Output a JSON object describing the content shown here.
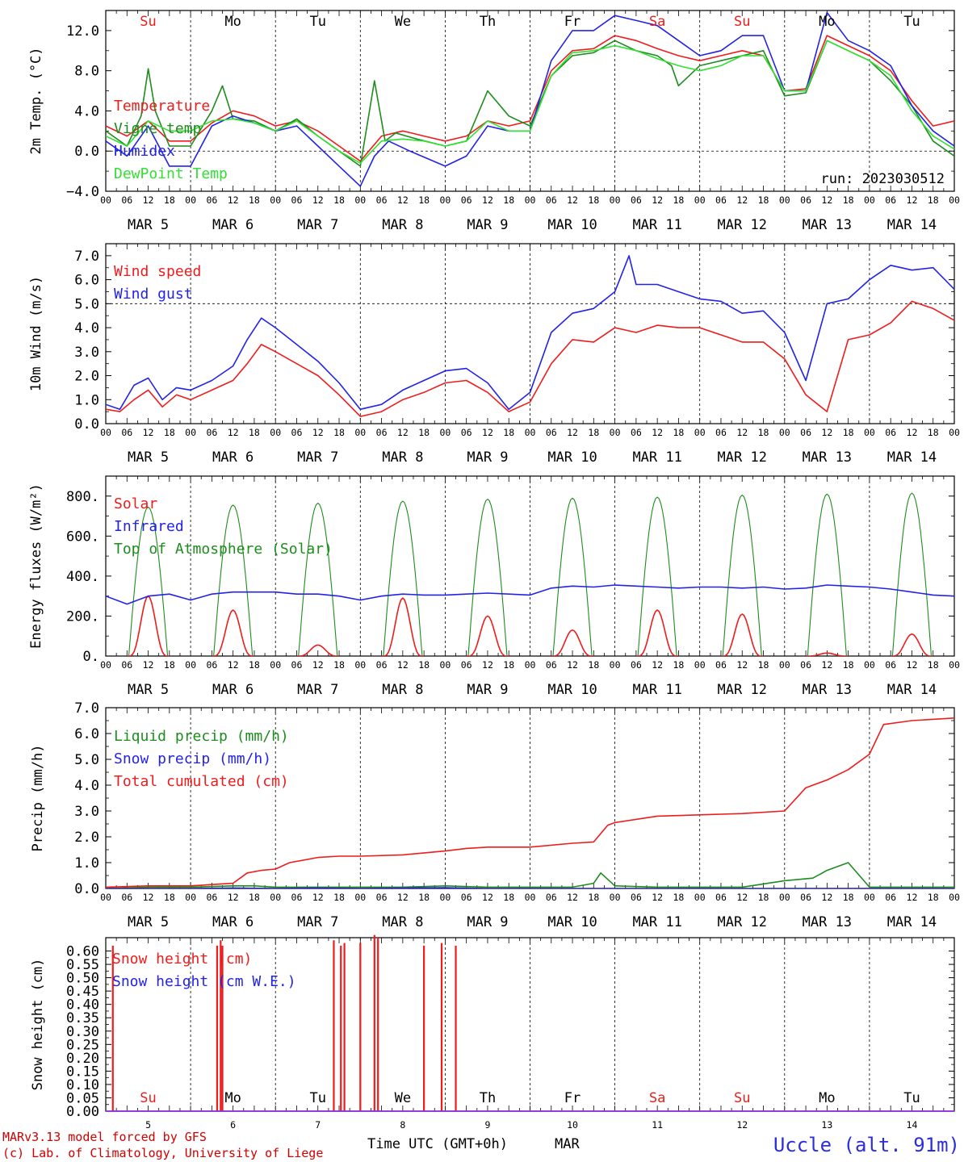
{
  "run_label": "run: 2023030512",
  "x_axis": {
    "hour_ticks": [
      "00",
      "06",
      "12",
      "18"
    ],
    "dates": [
      "MAR  5",
      "MAR  6",
      "MAR  7",
      "MAR  8",
      "MAR  9",
      "MAR 10",
      "MAR 11",
      "MAR 12",
      "MAR 13",
      "MAR 14"
    ],
    "day_numbers": [
      "5",
      "6",
      "7",
      "8",
      "9",
      "10",
      "11",
      "12",
      "13",
      "14"
    ],
    "xlabel": "Time UTC (GMT+0h)",
    "month": "MAR"
  },
  "weekdays": [
    {
      "label": "Su",
      "color": "#e8201c"
    },
    {
      "label": "Mo",
      "color": "#000000"
    },
    {
      "label": "Tu",
      "color": "#000000"
    },
    {
      "label": "We",
      "color": "#000000"
    },
    {
      "label": "Th",
      "color": "#000000"
    },
    {
      "label": "Fr",
      "color": "#000000"
    },
    {
      "label": "Sa",
      "color": "#e8201c"
    },
    {
      "label": "Su",
      "color": "#e8201c"
    },
    {
      "label": "Mo",
      "color": "#000000"
    },
    {
      "label": "Tu",
      "color": "#000000"
    }
  ],
  "footer": {
    "model": "MARv3.13 model forced by GFS",
    "credit": "(c) Lab. of Climatology, University of Liege",
    "station": "Uccle (alt. 91m)"
  },
  "colors": {
    "red": "#ee1c1c",
    "blue": "#2323e6",
    "dark_green": "#1e8c1e",
    "light_green": "#33e033"
  },
  "chart_data": [
    {
      "type": "line",
      "ylabel": "2m Temp. (°C)",
      "ylim": [
        -4,
        14
      ],
      "yticks": [
        -4,
        0,
        4,
        8,
        12
      ],
      "ytick_labels": [
        "−4.0",
        "0.0",
        "4.0",
        "8.0",
        "12.0"
      ],
      "reference_line": 0,
      "x_unit": "hours since MAR 5 00 UTC",
      "series": [
        {
          "name": "Temperature",
          "color": "#ee1c1c",
          "x": [
            0,
            6,
            12,
            18,
            24,
            30,
            36,
            42,
            48,
            54,
            60,
            66,
            72,
            78,
            84,
            90,
            96,
            102,
            108,
            114,
            120,
            126,
            132,
            138,
            144,
            150,
            156,
            162,
            168,
            174,
            180,
            186,
            192,
            198,
            204,
            210,
            216,
            222,
            228,
            234,
            240
          ],
          "y": [
            2.5,
            1.5,
            3.0,
            1.0,
            1.0,
            2.8,
            4.0,
            3.5,
            2.5,
            3.0,
            2.0,
            0.5,
            -1.0,
            1.5,
            2.0,
            1.5,
            1.0,
            1.5,
            3.0,
            2.5,
            3.0,
            8.0,
            10.0,
            10.2,
            11.5,
            11.0,
            10.2,
            9.5,
            9.0,
            9.5,
            10.0,
            9.5,
            6.0,
            6.2,
            11.5,
            10.5,
            9.5,
            8.0,
            5.0,
            2.5,
            3.0
          ]
        },
        {
          "name": "Vigne temp",
          "color": "#1e8c1e",
          "x": [
            0,
            6,
            10,
            12,
            14,
            18,
            24,
            30,
            33,
            36,
            42,
            48,
            54,
            60,
            66,
            72,
            76,
            79,
            82,
            88,
            96,
            102,
            108,
            114,
            120,
            126,
            132,
            138,
            144,
            150,
            156,
            160,
            162,
            168,
            174,
            180,
            186,
            192,
            198,
            204,
            210,
            216,
            222,
            228,
            234,
            240
          ],
          "y": [
            2.0,
            0.5,
            3.5,
            8.2,
            4.0,
            0.5,
            0.5,
            4.0,
            6.5,
            3.2,
            3.0,
            2.0,
            3.2,
            1.5,
            0.0,
            -1.5,
            7.0,
            1.0,
            1.8,
            1.2,
            0.5,
            1.0,
            6.0,
            3.5,
            2.5,
            7.5,
            9.5,
            9.8,
            11.0,
            10.0,
            9.5,
            8.5,
            6.5,
            8.5,
            9.0,
            9.5,
            10.0,
            5.5,
            5.8,
            11.0,
            10.0,
            9.0,
            7.0,
            4.5,
            1.0,
            -0.5
          ]
        },
        {
          "name": "Humidex",
          "color": "#2323e6",
          "x": [
            0,
            6,
            12,
            18,
            24,
            30,
            36,
            42,
            48,
            54,
            60,
            66,
            72,
            76,
            80,
            86,
            96,
            102,
            108,
            114,
            120,
            126,
            132,
            138,
            144,
            150,
            156,
            162,
            168,
            174,
            180,
            186,
            192,
            198,
            204,
            210,
            216,
            222,
            228,
            234,
            240
          ],
          "y": [
            1.0,
            -0.5,
            2.5,
            -1.5,
            -1.5,
            2.5,
            3.5,
            2.8,
            2.0,
            2.5,
            0.5,
            -1.5,
            -3.5,
            -0.5,
            1.0,
            0.0,
            -1.5,
            -0.5,
            2.5,
            2.0,
            2.0,
            9.0,
            12.0,
            12.0,
            13.5,
            13.0,
            12.5,
            11.0,
            9.5,
            10.0,
            11.5,
            11.5,
            6.0,
            6.0,
            13.8,
            11.0,
            10.0,
            8.5,
            4.5,
            2.0,
            0.5
          ]
        },
        {
          "name": "DewPoint Temp",
          "color": "#33e033",
          "x": [
            0,
            6,
            12,
            18,
            24,
            30,
            36,
            42,
            48,
            54,
            60,
            66,
            72,
            78,
            84,
            90,
            96,
            102,
            108,
            114,
            120,
            126,
            132,
            138,
            144,
            150,
            156,
            162,
            168,
            174,
            180,
            186,
            192,
            198,
            204,
            210,
            216,
            222,
            228,
            234,
            240
          ],
          "y": [
            1.5,
            0.5,
            3.0,
            2.0,
            2.0,
            3.0,
            3.2,
            2.8,
            2.0,
            3.0,
            1.5,
            0.0,
            -1.2,
            1.0,
            1.2,
            1.0,
            0.5,
            1.0,
            3.0,
            2.0,
            2.0,
            7.5,
            9.8,
            10.0,
            10.5,
            10.0,
            9.2,
            8.5,
            8.0,
            8.5,
            9.5,
            9.5,
            6.0,
            6.0,
            11.0,
            10.0,
            9.0,
            7.5,
            4.0,
            1.5,
            0.2
          ]
        }
      ]
    },
    {
      "type": "line",
      "ylabel": "10m Wind (m/s)",
      "ylim": [
        0,
        7.5
      ],
      "yticks": [
        0,
        1,
        2,
        3,
        4,
        5,
        6,
        7
      ],
      "ytick_labels": [
        "0.0",
        "1.0",
        "2.0",
        "3.0",
        "4.0",
        "5.0",
        "6.0",
        "7.0"
      ],
      "reference_line": 5,
      "x_unit": "hours since MAR 5 00 UTC",
      "series": [
        {
          "name": "Wind speed",
          "color": "#ee1c1c",
          "x": [
            0,
            4,
            8,
            12,
            16,
            20,
            24,
            30,
            36,
            40,
            44,
            48,
            54,
            60,
            66,
            72,
            78,
            84,
            90,
            96,
            102,
            108,
            114,
            120,
            126,
            132,
            138,
            144,
            150,
            156,
            162,
            168,
            174,
            180,
            186,
            192,
            198,
            204,
            210,
            216,
            222,
            228,
            234,
            240
          ],
          "y": [
            0.6,
            0.5,
            1.0,
            1.4,
            0.7,
            1.2,
            1.0,
            1.4,
            1.8,
            2.5,
            3.3,
            3.0,
            2.5,
            2.0,
            1.2,
            0.3,
            0.5,
            1.0,
            1.3,
            1.7,
            1.8,
            1.3,
            0.5,
            0.9,
            2.5,
            3.5,
            3.4,
            4.0,
            3.8,
            4.1,
            4.0,
            4.0,
            3.7,
            3.4,
            3.4,
            2.7,
            1.2,
            0.5,
            3.5,
            3.7,
            4.2,
            5.1,
            4.8,
            4.3
          ]
        },
        {
          "name": "Wind gust",
          "color": "#2323e6",
          "x": [
            0,
            4,
            8,
            12,
            16,
            20,
            24,
            30,
            36,
            40,
            44,
            48,
            54,
            60,
            66,
            72,
            78,
            84,
            90,
            96,
            102,
            108,
            114,
            120,
            126,
            132,
            138,
            144,
            148,
            150,
            156,
            162,
            168,
            174,
            180,
            186,
            192,
            198,
            204,
            210,
            216,
            222,
            228,
            234,
            240
          ],
          "y": [
            0.8,
            0.6,
            1.6,
            1.9,
            1.0,
            1.5,
            1.4,
            1.8,
            2.4,
            3.5,
            4.4,
            4.0,
            3.3,
            2.6,
            1.7,
            0.6,
            0.8,
            1.4,
            1.8,
            2.2,
            2.3,
            1.7,
            0.6,
            1.3,
            3.8,
            4.6,
            4.8,
            5.5,
            7.0,
            5.8,
            5.8,
            5.5,
            5.2,
            5.1,
            4.6,
            4.7,
            3.8,
            1.8,
            5.0,
            5.2,
            6.0,
            6.6,
            6.4,
            6.5,
            5.6
          ]
        }
      ]
    },
    {
      "type": "line",
      "ylabel": "Energy fluxes (W/m²)",
      "ylim": [
        0,
        900
      ],
      "yticks": [
        0,
        200,
        400,
        600,
        800
      ],
      "ytick_labels": [
        "0.",
        "200.",
        "400.",
        "600.",
        "800."
      ],
      "x_unit": "hours since MAR 5 00 UTC",
      "daily_peaks": {
        "top_of_atmosphere": [
          745,
          755,
          765,
          775,
          785,
          790,
          795,
          805,
          810,
          815
        ],
        "solar": [
          300,
          230,
          55,
          290,
          200,
          130,
          230,
          210,
          15,
          110
        ]
      },
      "series": [
        {
          "name": "Solar",
          "color": "#ee1c1c"
        },
        {
          "name": "Infrared",
          "color": "#2323e6",
          "x": [
            0,
            6,
            12,
            18,
            24,
            30,
            36,
            42,
            48,
            54,
            60,
            66,
            72,
            78,
            84,
            90,
            96,
            102,
            108,
            114,
            120,
            126,
            132,
            138,
            144,
            150,
            156,
            162,
            168,
            174,
            180,
            186,
            192,
            198,
            204,
            210,
            216,
            222,
            228,
            234,
            240
          ],
          "y": [
            300,
            260,
            300,
            310,
            280,
            310,
            320,
            320,
            320,
            310,
            310,
            300,
            280,
            300,
            310,
            305,
            305,
            310,
            315,
            310,
            305,
            340,
            350,
            345,
            355,
            350,
            345,
            340,
            345,
            345,
            340,
            345,
            335,
            340,
            355,
            350,
            345,
            335,
            320,
            305,
            300
          ]
        },
        {
          "name": "Top of Atmosphere (Solar)",
          "color": "#1e8c1e"
        }
      ]
    },
    {
      "type": "line",
      "ylabel": "Precip (mm/h)",
      "ylim": [
        0,
        7
      ],
      "yticks": [
        0,
        1,
        2,
        3,
        4,
        5,
        6,
        7
      ],
      "ytick_labels": [
        "0.0",
        "1.0",
        "2.0",
        "3.0",
        "4.0",
        "5.0",
        "6.0",
        "7.0"
      ],
      "x_unit": "hours since MAR 5 00 UTC",
      "series": [
        {
          "name": "Liquid precip (mm/h)",
          "color": "#1e8c1e",
          "x": [
            0,
            12,
            24,
            36,
            42,
            48,
            60,
            72,
            84,
            96,
            108,
            120,
            132,
            138,
            140,
            144,
            156,
            168,
            180,
            192,
            200,
            204,
            210,
            216,
            228,
            240
          ],
          "y": [
            0,
            0.05,
            0.05,
            0.1,
            0.1,
            0.05,
            0.05,
            0.05,
            0.05,
            0.1,
            0.05,
            0.05,
            0.05,
            0.2,
            0.6,
            0.1,
            0.05,
            0.05,
            0.05,
            0.3,
            0.4,
            0.7,
            1.0,
            0.05,
            0.05,
            0.05
          ]
        },
        {
          "name": "Snow precip (mm/h)",
          "color": "#2323e6",
          "x": [
            0,
            24,
            36,
            48,
            60,
            72,
            84,
            96,
            108,
            120,
            144,
            168,
            192,
            216,
            240
          ],
          "y": [
            0,
            0,
            0.02,
            0,
            0.02,
            0,
            0.02,
            0.03,
            0,
            0,
            0,
            0,
            0,
            0,
            0
          ]
        },
        {
          "name": "Total cumulated (cm)",
          "color": "#ee1c1c",
          "x": [
            0,
            12,
            24,
            30,
            36,
            40,
            44,
            48,
            52,
            60,
            66,
            72,
            84,
            96,
            102,
            108,
            120,
            132,
            138,
            142,
            144,
            156,
            168,
            180,
            192,
            198,
            204,
            210,
            216,
            220,
            228,
            240
          ],
          "y": [
            0.05,
            0.1,
            0.1,
            0.15,
            0.2,
            0.6,
            0.7,
            0.75,
            1.0,
            1.2,
            1.25,
            1.25,
            1.3,
            1.45,
            1.55,
            1.6,
            1.6,
            1.75,
            1.8,
            2.45,
            2.55,
            2.8,
            2.85,
            2.9,
            3.0,
            3.9,
            4.2,
            4.6,
            5.2,
            6.35,
            6.5,
            6.6
          ]
        }
      ]
    },
    {
      "type": "bar",
      "ylabel": "Snow height (cm)",
      "ylim": [
        0,
        0.65
      ],
      "yticks": [
        0,
        0.05,
        0.1,
        0.15,
        0.2,
        0.25,
        0.3,
        0.35,
        0.4,
        0.45,
        0.5,
        0.55,
        0.6
      ],
      "ytick_labels": [
        "0.00",
        "0.05",
        "0.10",
        "0.15",
        "0.20",
        "0.25",
        "0.30",
        "0.35",
        "0.40",
        "0.45",
        "0.50",
        "0.55",
        "0.60"
      ],
      "x_unit": "hours since MAR 5 00 UTC",
      "series": [
        {
          "name": "Snow height (cm)",
          "color": "#ee1c1c",
          "x": [
            2,
            31.5,
            32.5,
            33,
            64.5,
            66.5,
            67.5,
            72,
            76,
            77,
            90,
            95,
            99
          ],
          "y": [
            0.62,
            0.62,
            0.64,
            0.62,
            0.64,
            0.62,
            0.63,
            0.63,
            0.66,
            0.65,
            0.62,
            0.63,
            0.62
          ]
        },
        {
          "name": "Snow height (cm W.E.)",
          "color": "#2323e6",
          "x": [
            0,
            240
          ],
          "y": [
            0,
            0
          ]
        }
      ]
    }
  ]
}
